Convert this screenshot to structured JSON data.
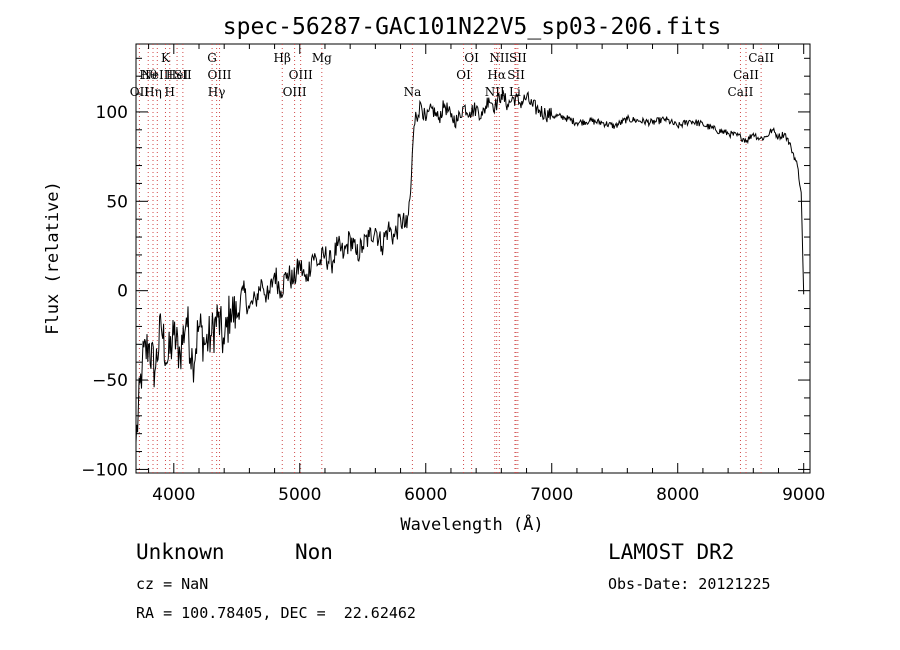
{
  "chart_data": {
    "type": "line",
    "title": "spec-56287-GAC101N22V5_sp03-206.fits",
    "xlabel": "Wavelength (Å)",
    "ylabel": "Flux (relative)",
    "xlim": [
      3700,
      9050
    ],
    "ylim": [
      -102,
      138
    ],
    "xticks": [
      4000,
      5000,
      6000,
      7000,
      8000,
      9000
    ],
    "yticks": [
      -100,
      -50,
      0,
      50,
      100
    ],
    "ytick_labels": [
      "−100",
      "−50",
      "0",
      "50",
      "100"
    ],
    "grid": false,
    "line_color": "#000000",
    "marker_color": "#d04848",
    "series": [
      {
        "x": [
          3700,
          3750,
          3800,
          3850,
          3900,
          3950,
          4000,
          4050,
          4100,
          4150,
          4200,
          4250,
          4300,
          4350,
          4400,
          4450,
          4500,
          4550,
          4600,
          4650,
          4700,
          4750,
          4800,
          4850,
          4900,
          4950,
          5000,
          5050,
          5100,
          5150,
          5200,
          5250,
          5300,
          5350,
          5400,
          5450,
          5500,
          5550,
          5600,
          5650,
          5700,
          5750,
          5800,
          5850,
          5880,
          5900,
          5920,
          5940,
          5960,
          6000,
          6050,
          6100,
          6150,
          6200,
          6250,
          6300,
          6350,
          6400,
          6450,
          6500,
          6550,
          6600,
          6650,
          6700,
          6750,
          6800,
          6850,
          6900,
          6950,
          7000,
          7100,
          7200,
          7300,
          7400,
          7500,
          7600,
          7700,
          7800,
          7900,
          8000,
          8100,
          8200,
          8300,
          8400,
          8500,
          8550,
          8600,
          8650,
          8700,
          8750,
          8800,
          8850,
          8900,
          8950,
          8980,
          9000
        ],
        "y": [
          -85,
          -40,
          -30,
          -45,
          -20,
          -40,
          -25,
          -35,
          -15,
          -40,
          -20,
          -30,
          -25,
          -15,
          -30,
          -10,
          -15,
          0,
          -10,
          -5,
          5,
          -5,
          10,
          0,
          10,
          5,
          15,
          5,
          20,
          15,
          20,
          15,
          25,
          20,
          30,
          20,
          25,
          30,
          35,
          25,
          35,
          30,
          40,
          35,
          55,
          85,
          100,
          98,
          105,
          95,
          102,
          96,
          104,
          97,
          95,
          103,
          100,
          102,
          98,
          108,
          103,
          110,
          104,
          108,
          105,
          108,
          103,
          101,
          99,
          98,
          97,
          94,
          95,
          94,
          92,
          96,
          95,
          94,
          96,
          92,
          95,
          93,
          90,
          88,
          86,
          84,
          88,
          85,
          86,
          90,
          86,
          88,
          80,
          70,
          55,
          -2
        ]
      }
    ],
    "line_markers": [
      {
        "x": 3797,
        "row": 1,
        "label": "Hθ"
      },
      {
        "x": 3835,
        "row": 2,
        "label": "Hη"
      },
      {
        "x": 3727,
        "row": 2,
        "label": "OII"
      },
      {
        "x": 3869,
        "row": 1,
        "label": "NeIII"
      },
      {
        "x": 3934,
        "row": 0,
        "label": "K"
      },
      {
        "x": 3968,
        "row": 2,
        "label": "H"
      },
      {
        "x": 4026,
        "row": 1,
        "label": "HeI"
      },
      {
        "x": 4072,
        "row": 1,
        "label": "SII"
      },
      {
        "x": 4304,
        "row": 0,
        "label": "G"
      },
      {
        "x": 4340,
        "row": 2,
        "label": "Hγ"
      },
      {
        "x": 4363,
        "row": 1,
        "label": "OIII"
      },
      {
        "x": 4861,
        "row": 0,
        "label": "Hβ"
      },
      {
        "x": 4959,
        "row": 2,
        "label": "OIII"
      },
      {
        "x": 5007,
        "row": 1,
        "label": "OIII"
      },
      {
        "x": 5175,
        "row": 0,
        "label": "Mg"
      },
      {
        "x": 5894,
        "row": 2,
        "label": "Na"
      },
      {
        "x": 6300,
        "row": 1,
        "label": "OI"
      },
      {
        "x": 6364,
        "row": 0,
        "label": "OI"
      },
      {
        "x": 6548,
        "row": 2,
        "label": "NII"
      },
      {
        "x": 6563,
        "row": 1,
        "label": "Hα"
      },
      {
        "x": 6584,
        "row": 0,
        "label": "NII"
      },
      {
        "x": 6708,
        "row": 2,
        "label": "Li"
      },
      {
        "x": 6717,
        "row": 1,
        "label": "SII"
      },
      {
        "x": 6731,
        "row": 0,
        "label": "SII"
      },
      {
        "x": 8498,
        "row": 2,
        "label": "CaII"
      },
      {
        "x": 8542,
        "row": 1,
        "label": "CaII"
      },
      {
        "x": 8662,
        "row": 0,
        "label": "CaII"
      }
    ]
  },
  "info": {
    "class_label": "Unknown",
    "subclass_label": "Non",
    "survey_label": "LAMOST DR2",
    "cz_text": "cz = NaN",
    "obs_date_text": "Obs-Date: 20121225",
    "coords_text": "RA = 100.78405, DEC =  22.62462"
  }
}
